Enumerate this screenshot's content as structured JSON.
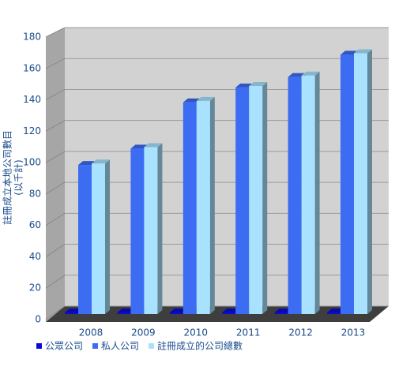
{
  "chart_data": {
    "type": "bar3d",
    "y_title": [
      "註冊成立本地公司數目",
      "(以千計)"
    ],
    "categories": [
      "2008",
      "2009",
      "2010",
      "2011",
      "2012",
      "2013"
    ],
    "series": [
      {
        "name": "公眾公司",
        "color": "#0a0ad8",
        "values": [
          1,
          1,
          1,
          1,
          1,
          1
        ]
      },
      {
        "name": "私人公司",
        "color": "#3c6cf2",
        "values": [
          100,
          111,
          142,
          152,
          159,
          174
        ]
      },
      {
        "name": "註冊成立的公司總數",
        "color": "#a8e2ff",
        "values": [
          101,
          112,
          143,
          153,
          160,
          175
        ]
      }
    ],
    "ylim": [
      0,
      180
    ],
    "yticks": [
      0,
      20,
      40,
      60,
      80,
      100,
      120,
      140,
      160,
      180
    ],
    "grid": true
  }
}
